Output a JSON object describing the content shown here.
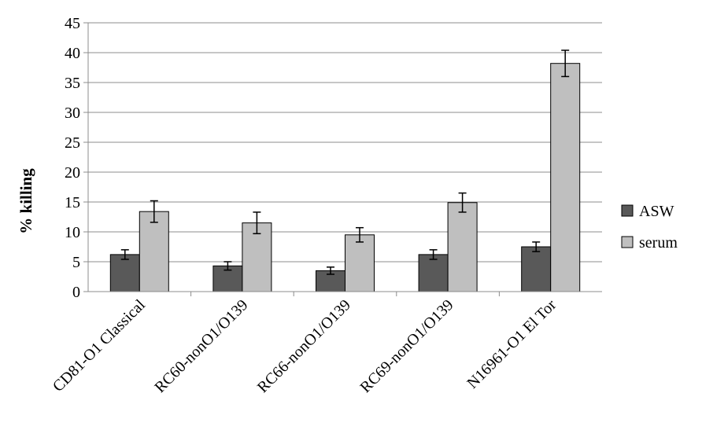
{
  "chart_data": {
    "type": "bar",
    "title": "",
    "xlabel": "",
    "ylabel": "% killing",
    "ylim": [
      0,
      45
    ],
    "yticks": [
      0,
      5,
      10,
      15,
      20,
      25,
      30,
      35,
      40,
      45
    ],
    "grid": true,
    "legend_position": "right",
    "categories": [
      "CD81-O1 Classical",
      "RC60-nonO1/O139",
      "RC66-nonO1/O139",
      "RC69-nonO1/O139",
      "N16961-O1 El Tor"
    ],
    "series": [
      {
        "name": "ASW",
        "color": "#595959",
        "values": [
          6.2,
          4.3,
          3.5,
          6.2,
          7.5
        ],
        "errors": [
          0.8,
          0.7,
          0.6,
          0.8,
          0.8
        ]
      },
      {
        "name": "serum",
        "color": "#bfbfbf",
        "values": [
          13.4,
          11.5,
          9.5,
          14.9,
          38.2
        ],
        "errors": [
          1.8,
          1.8,
          1.2,
          1.6,
          2.2
        ]
      }
    ]
  }
}
